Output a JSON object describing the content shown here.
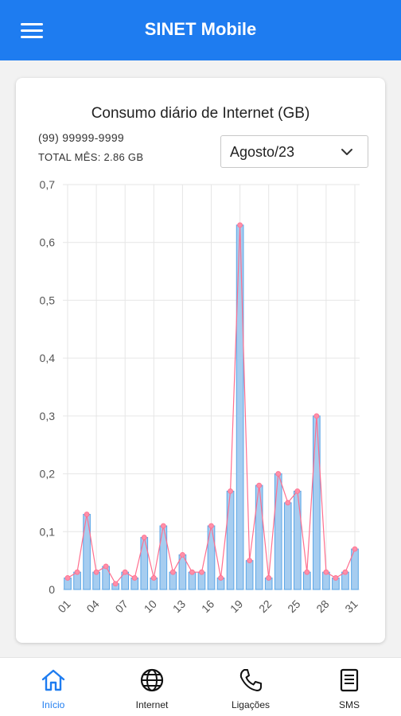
{
  "app": {
    "title": "SINET Mobile"
  },
  "card": {
    "title": "Consumo diário de Internet (GB)",
    "phone": "(99) 99999-9999",
    "total": "TOTAL MÊS: 2.86 GB",
    "month_select": {
      "selected": "Agosto/23"
    }
  },
  "chart_data": {
    "type": "bar",
    "title": "Consumo diário de Internet (GB)",
    "categories": [
      "01",
      "02",
      "03",
      "04",
      "05",
      "06",
      "07",
      "08",
      "09",
      "10",
      "11",
      "12",
      "13",
      "14",
      "15",
      "16",
      "17",
      "18",
      "19",
      "20",
      "21",
      "22",
      "23",
      "24",
      "25",
      "26",
      "27",
      "28",
      "29",
      "30",
      "31"
    ],
    "values": [
      0.02,
      0.03,
      0.13,
      0.03,
      0.04,
      0.01,
      0.03,
      0.02,
      0.09,
      0.02,
      0.11,
      0.03,
      0.06,
      0.03,
      0.03,
      0.11,
      0.02,
      0.17,
      0.63,
      0.05,
      0.18,
      0.02,
      0.2,
      0.15,
      0.17,
      0.03,
      0.3,
      0.03,
      0.02,
      0.03,
      0.07
    ],
    "tick_labels_x": [
      "01",
      "04",
      "07",
      "10",
      "13",
      "16",
      "19",
      "22",
      "25",
      "28",
      "31"
    ],
    "y_ticks": [
      "0",
      "0,1",
      "0,2",
      "0,3",
      "0,4",
      "0,5",
      "0,6",
      "0,7"
    ],
    "ylim": [
      0,
      0.7
    ],
    "grid": true,
    "overlay": "line",
    "colors": {
      "bar_fill": "#a6cdf0",
      "bar_stroke": "#5aa5e6",
      "line": "#ff6f8f",
      "point": "#ff8fa8"
    }
  },
  "colors": {
    "primary": "#1e7cf0"
  },
  "nav": {
    "items": [
      {
        "label": "Início",
        "icon": "home-icon",
        "active": true
      },
      {
        "label": "Internet",
        "icon": "globe-icon",
        "active": false
      },
      {
        "label": "Ligações",
        "icon": "phone-icon",
        "active": false
      },
      {
        "label": "SMS",
        "icon": "document-icon",
        "active": false
      }
    ]
  }
}
